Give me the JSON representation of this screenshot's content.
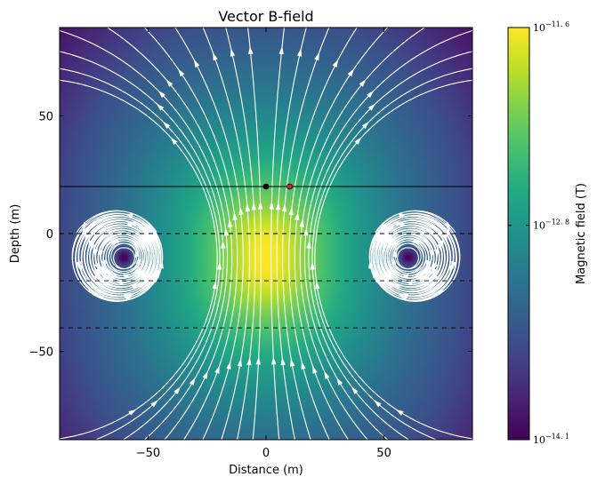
{
  "chart_data": {
    "type": "heatmap",
    "title": "Vector B-field",
    "xlabel": "Distance (m)",
    "ylabel": "Depth (m)",
    "xlim": [
      -87.5,
      87.5
    ],
    "ylim": [
      -87.5,
      87.5
    ],
    "x_ticks": [
      {
        "value": -50,
        "label": "−50"
      },
      {
        "value": 0,
        "label": "0"
      },
      {
        "value": 50,
        "label": "50"
      }
    ],
    "y_ticks": [
      {
        "value": -50,
        "label": "−50"
      },
      {
        "value": 0,
        "label": "0"
      },
      {
        "value": 50,
        "label": "50"
      }
    ],
    "colorbar": {
      "label": "Magnetic field (T)",
      "colormap": "viridis",
      "scale": "log",
      "min_exponent": -14.1,
      "max_exponent": -11.6,
      "ticks": [
        {
          "exponent": -14.1,
          "base": "10",
          "exp_label": "−14. 1"
        },
        {
          "exponent": -12.8,
          "base": "10",
          "exp_label": "−12. 8"
        },
        {
          "exponent": -11.6,
          "base": "10",
          "exp_label": "−11. 6"
        }
      ]
    },
    "field": {
      "type": "horizontal magnetic dipole",
      "source_center": {
        "x": 0,
        "y": -10
      },
      "field_lines": "streamlines, white"
    },
    "reference_lines": [
      {
        "y": 20,
        "style": "solid",
        "color": "#000000"
      },
      {
        "y": 0,
        "style": "dashed",
        "color": "#000000"
      },
      {
        "y": -20,
        "style": "dashed",
        "color": "#000000"
      },
      {
        "y": -40,
        "style": "dashed",
        "color": "#000000"
      }
    ],
    "points": [
      {
        "x": 0,
        "y": 20,
        "color": "#000000"
      },
      {
        "x": 10,
        "y": 20,
        "color": "#d62728"
      }
    ],
    "grid": false,
    "legend": "none"
  }
}
